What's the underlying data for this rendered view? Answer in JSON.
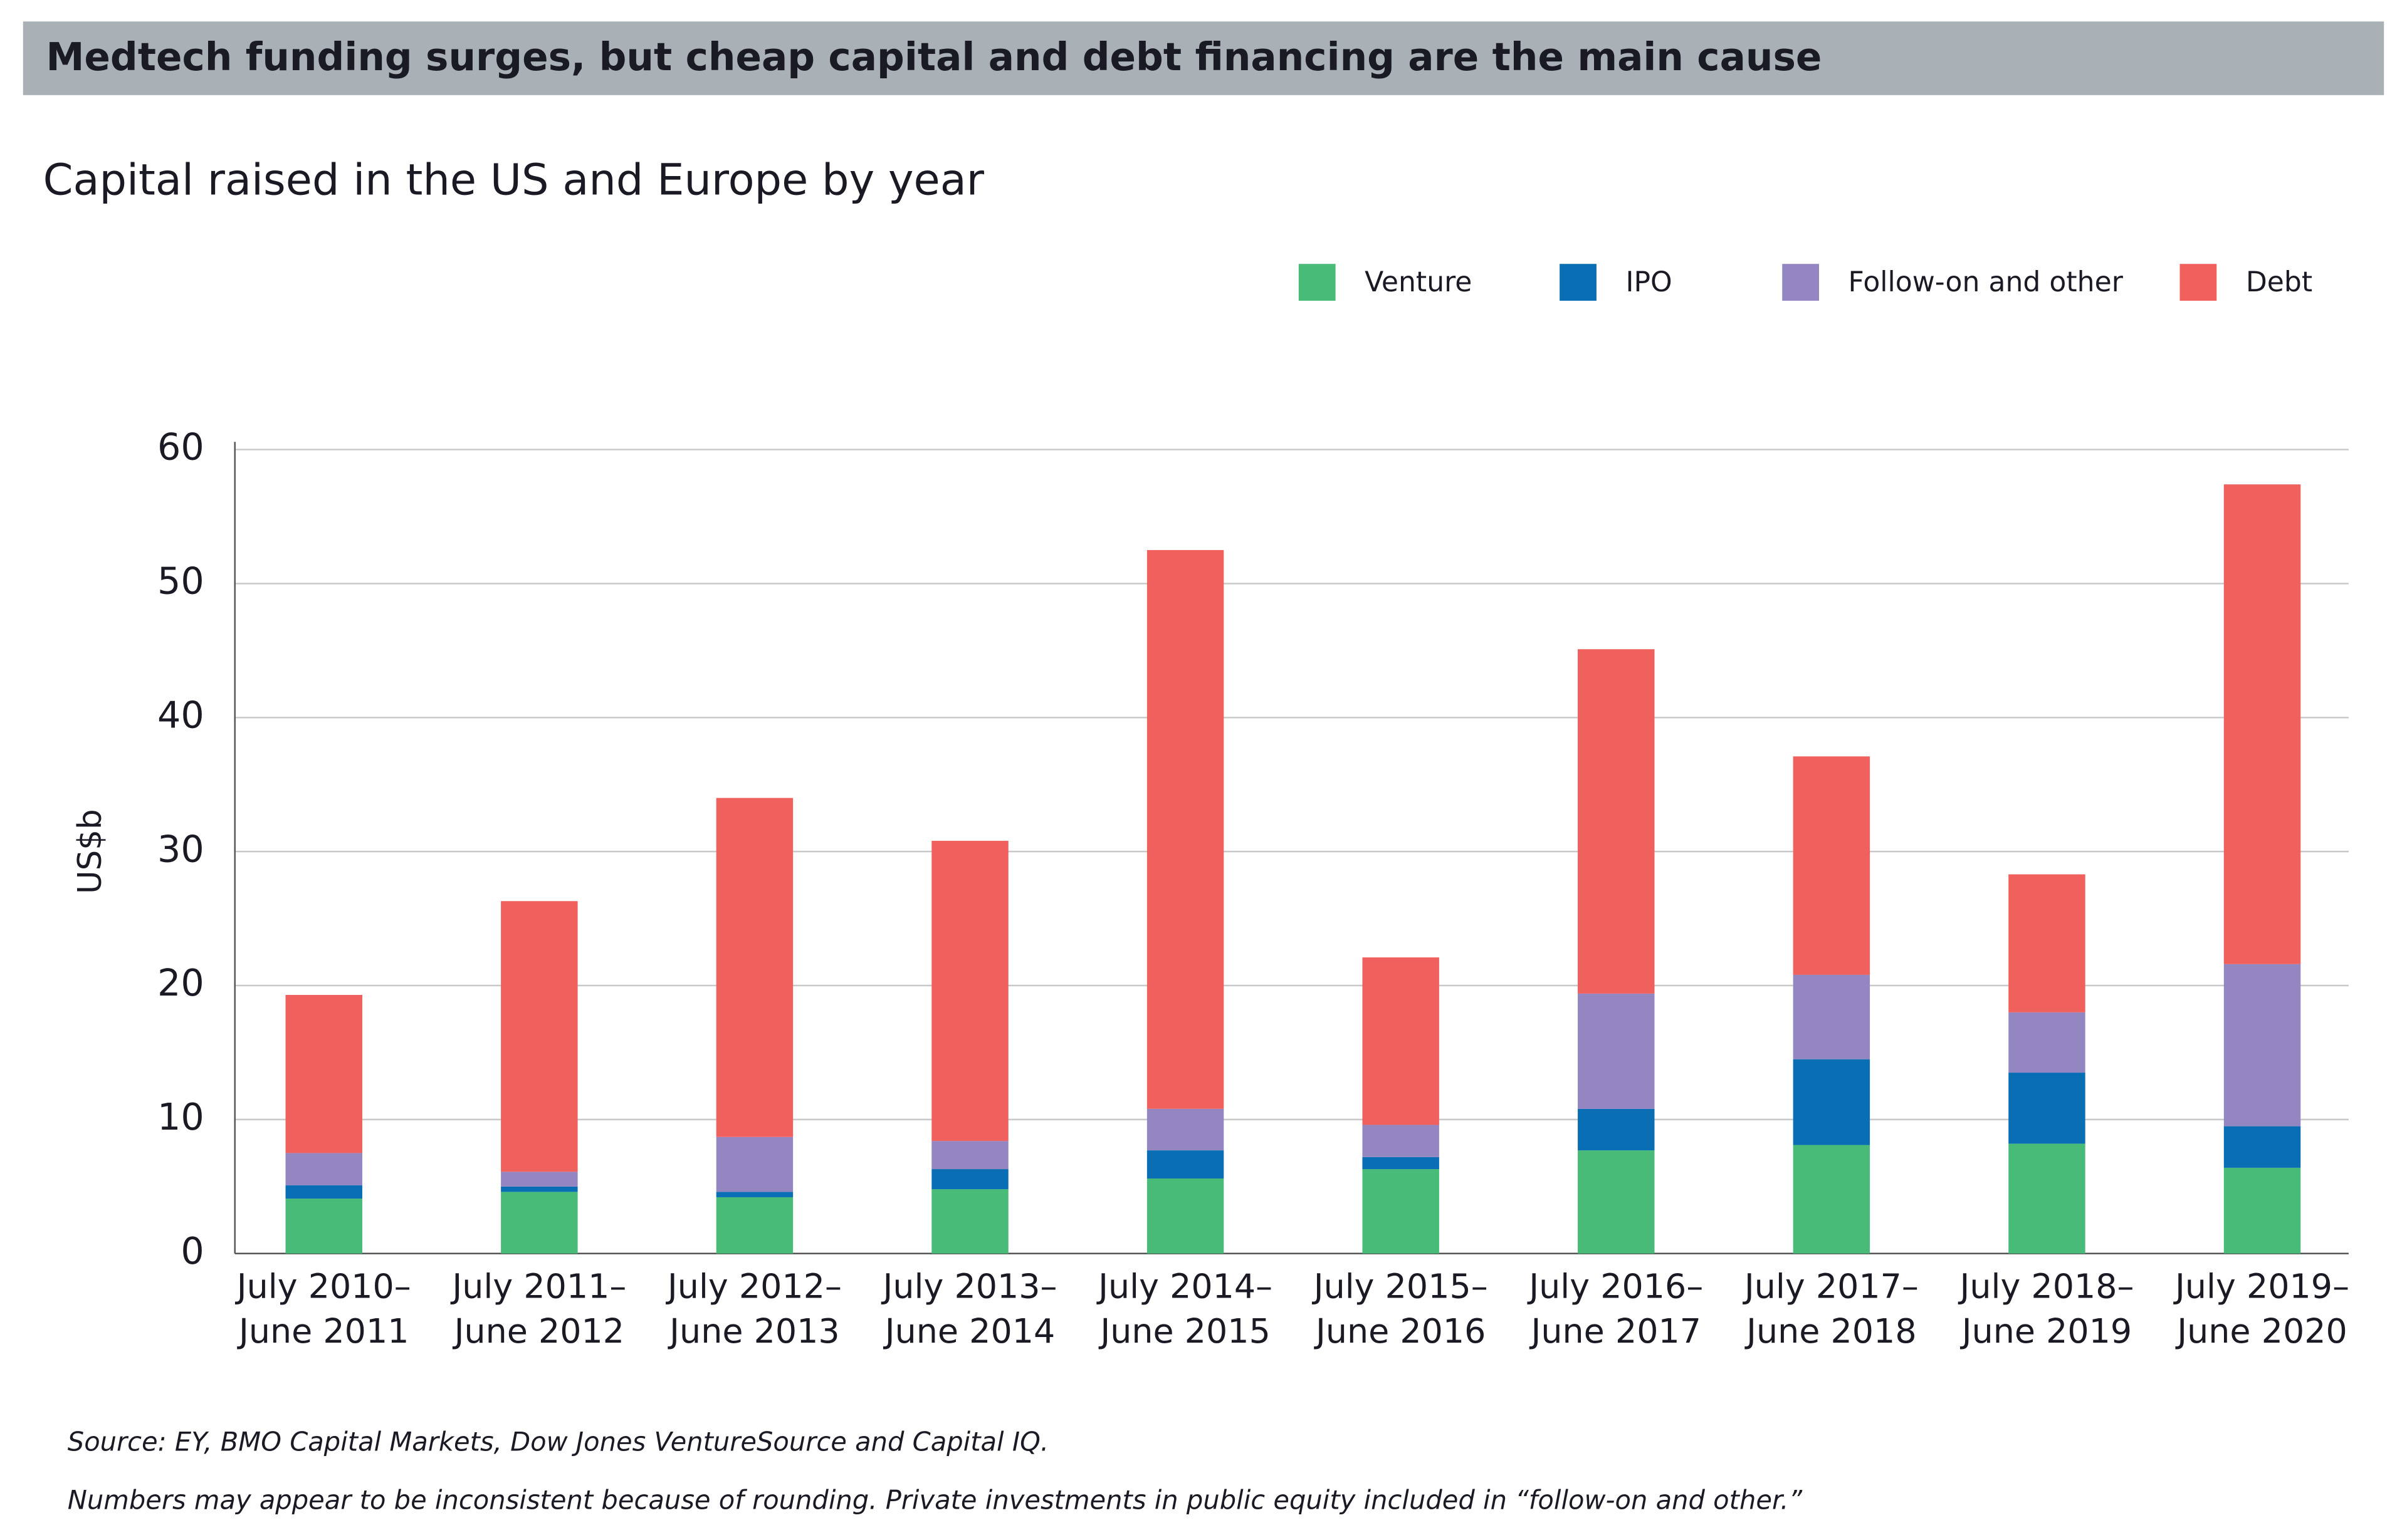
{
  "chart_data": {
    "type": "stacked_bar",
    "header": "Medtech funding surges, but cheap capital and debt financing are the main cause",
    "title": "Capital raised in the US and Europe by year",
    "ylabel": "US$b",
    "categories": [
      [
        "July 2010–",
        "June 2011"
      ],
      [
        "July 2011–",
        "June 2012"
      ],
      [
        "July 2012–",
        "June 2013"
      ],
      [
        "July 2013–",
        "June 2014"
      ],
      [
        "July 2014–",
        "June 2015"
      ],
      [
        "July 2015–",
        "June 2016"
      ],
      [
        "July 2016–",
        "June 2017"
      ],
      [
        "July 2017–",
        "June 2018"
      ],
      [
        "July 2018–",
        "June 2019"
      ],
      [
        "July 2019–",
        "June 2020"
      ]
    ],
    "series": [
      {
        "name": "Venture",
        "color": "#48bb78",
        "values": [
          4.1,
          4.6,
          4.2,
          4.8,
          5.6,
          6.3,
          7.7,
          8.1,
          8.2,
          6.4
        ]
      },
      {
        "name": "IPO",
        "color": "#0a6eb4",
        "values": [
          1.0,
          0.4,
          0.4,
          1.5,
          2.1,
          0.9,
          3.1,
          6.4,
          5.3,
          3.1
        ]
      },
      {
        "name": "Follow-on and other",
        "color": "#9386c1",
        "values": [
          2.4,
          1.1,
          4.1,
          2.1,
          3.1,
          2.4,
          8.6,
          6.3,
          4.5,
          12.1
        ]
      },
      {
        "name": "Debt",
        "color": "#f0605d",
        "values": [
          11.8,
          20.2,
          25.3,
          22.4,
          41.7,
          12.5,
          25.7,
          16.3,
          10.3,
          35.8
        ]
      }
    ],
    "ylim": [
      0,
      60
    ],
    "yticks": [
      0,
      10,
      20,
      30,
      40,
      50,
      60
    ],
    "grid": true,
    "legend": "top-right",
    "notes": [
      "Source: EY, BMO Capital Markets, Dow Jones VentureSource and Capital IQ.",
      "Numbers may appear to be inconsistent because of rounding. Private investments in public equity included in “follow-on and other.”"
    ]
  }
}
